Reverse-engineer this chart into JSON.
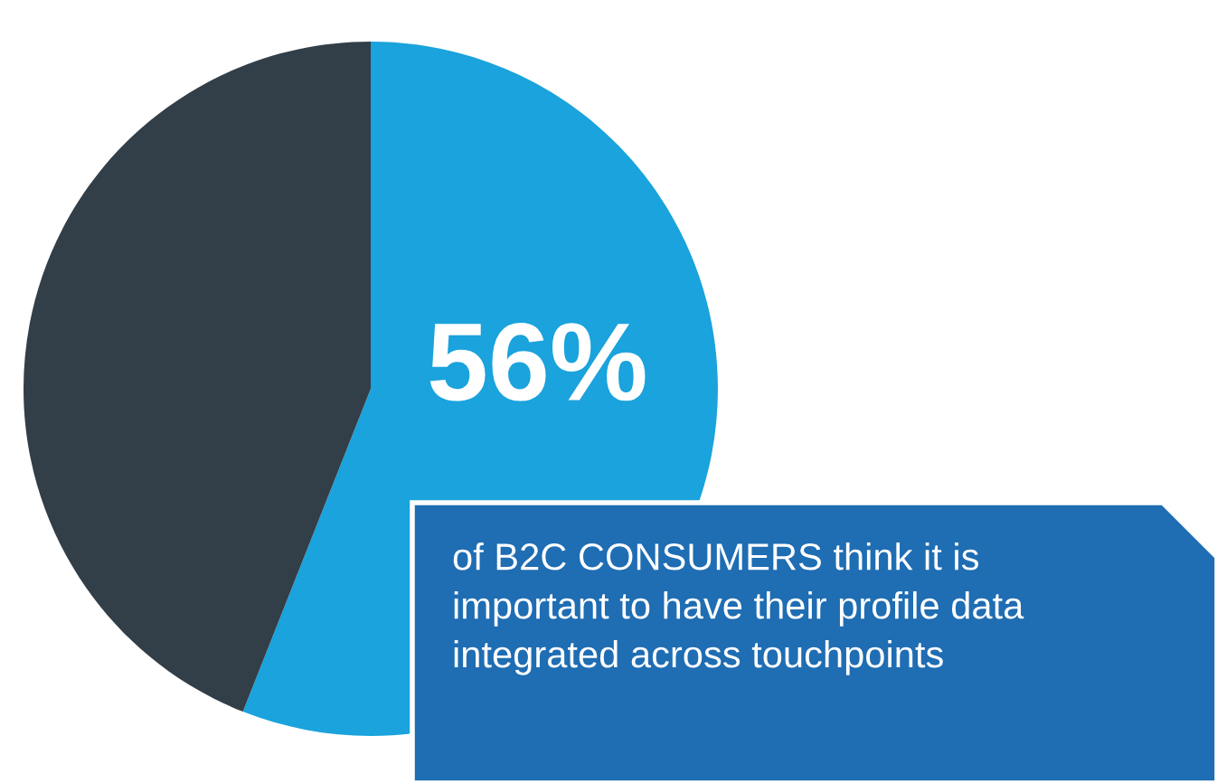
{
  "chart_data": {
    "type": "pie",
    "categories": [
      null,
      null
    ],
    "values": [
      56,
      44
    ],
    "colors": [
      "#1aa3dc",
      "#323e48"
    ],
    "value_labels": [
      "56%",
      null
    ],
    "annotations": [
      "of B2C CONSUMERS think it is\nimportant to have their profile data\nintegrated across touchpoints"
    ]
  }
}
